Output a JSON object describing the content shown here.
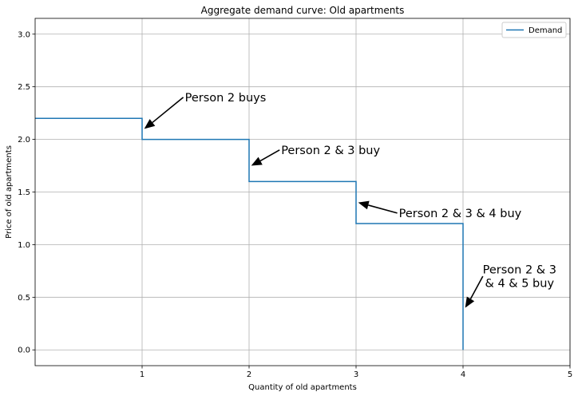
{
  "chart_data": {
    "type": "line",
    "title": "Aggregate demand curve: Old apartments",
    "xlabel": "Quantity of old apartments",
    "ylabel": "Price of old apartments",
    "xlim": [
      0,
      5
    ],
    "ylim": [
      -0.15,
      3.15
    ],
    "xticks": [
      1,
      2,
      3,
      4,
      5
    ],
    "yticks": [
      0.0,
      0.5,
      1.0,
      1.5,
      2.0,
      2.5,
      3.0
    ],
    "grid": true,
    "legend_position": "top-right",
    "series": [
      {
        "name": "Demand",
        "color": "#1f77b4",
        "step_points": [
          [
            0,
            2.2
          ],
          [
            1,
            2.2
          ],
          [
            1,
            2.0
          ],
          [
            2,
            2.0
          ],
          [
            2,
            1.6
          ],
          [
            3,
            1.6
          ],
          [
            3,
            1.2
          ],
          [
            4,
            1.2
          ],
          [
            4,
            0.0
          ]
        ]
      }
    ],
    "annotations": [
      {
        "lines": [
          "Person 2 buys"
        ],
        "text_xy": [
          1.4,
          2.4
        ],
        "arrow_xy": [
          1.02,
          2.1
        ]
      },
      {
        "lines": [
          "Person 2 & 3 buy"
        ],
        "text_xy": [
          2.3,
          1.9
        ],
        "arrow_xy": [
          2.02,
          1.75
        ]
      },
      {
        "lines": [
          "Person 2 & 3 & 4 buy"
        ],
        "text_xy": [
          3.4,
          1.3
        ],
        "arrow_xy": [
          3.02,
          1.4
        ]
      },
      {
        "lines": [
          "Person 2 & 3",
          "& 4 & 5 buy"
        ],
        "text_xy": [
          4.2,
          0.7
        ],
        "arrow_xy": [
          4.02,
          0.4
        ]
      }
    ]
  }
}
